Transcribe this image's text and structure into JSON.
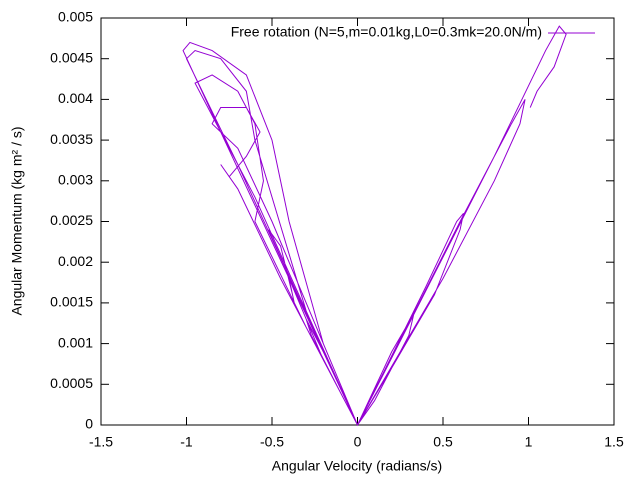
{
  "chart_data": {
    "type": "line",
    "x_label": "Angular Velocity (radians/s)",
    "y_label": "Angular Momentum (kg m² / s)",
    "xlim": [
      -1.5,
      1.5
    ],
    "xticks": [
      -1.5,
      -1,
      -0.5,
      0,
      0.5,
      1,
      1.5
    ],
    "ylim": [
      0,
      0.005
    ],
    "yticks": [
      0,
      0.0005,
      0.001,
      0.0015,
      0.002,
      0.0025,
      0.003,
      0.0035,
      0.004,
      0.0045,
      0.005
    ],
    "legend": "top-right",
    "series": [
      {
        "name": "Free rotation (N=5,m=0.01kg,L0=0.3mk=20.0N/m)",
        "color": "#9400d3",
        "x": [
          0,
          -0.2,
          -0.3,
          -0.27,
          -0.1,
          0,
          0.2,
          0.33,
          0.3,
          0.1,
          0,
          -0.35,
          -0.5,
          -0.52,
          -0.45,
          -0.38,
          -0.37,
          -0.4,
          -0.2,
          0,
          0.4,
          0.58,
          0.62,
          0.6,
          0.45,
          0.2,
          0,
          -0.5,
          -0.7,
          -0.85,
          -0.8,
          -0.65,
          -0.57,
          -0.65,
          -0.75,
          -0.8,
          -0.7,
          -0.45,
          0,
          0.6,
          0.9,
          0.98,
          0.95,
          0.8,
          0.5,
          0,
          -0.6,
          -0.9,
          -0.95,
          -0.85,
          -0.7,
          -0.6,
          -0.55,
          -0.6,
          -0.3,
          0,
          -0.7,
          -1.0,
          -0.95,
          -0.8,
          -0.65,
          -0.6,
          -0.3,
          0,
          -0.8,
          -1.02,
          -0.98,
          -0.85,
          -0.65,
          -0.5,
          -0.4,
          -0.2,
          0,
          0.8,
          1.1,
          1.18,
          1.22,
          1.15,
          1.05,
          1.01
        ],
        "values": [
          0,
          0.0009,
          0.0013,
          0.0011,
          0.0004,
          0,
          0.0009,
          0.00137,
          0.0011,
          0.0003,
          0,
          0.0016,
          0.0023,
          0.0024,
          0.0022,
          0.0016,
          0.0015,
          0.0018,
          0.0008,
          0,
          0.0017,
          0.0025,
          0.0026,
          0.0024,
          0.0016,
          0.0007,
          0,
          0.0025,
          0.0034,
          0.0037,
          0.0039,
          0.0039,
          0.0036,
          0.0033,
          0.00305,
          0.0032,
          0.0029,
          0.0018,
          0,
          0.0025,
          0.0037,
          0.004,
          0.0037,
          0.003,
          0.0018,
          0,
          0.0028,
          0.004,
          0.0042,
          0.0043,
          0.0041,
          0.0037,
          0.003,
          0.0025,
          0.0012,
          0,
          0.0032,
          0.0045,
          0.0046,
          0.0045,
          0.0041,
          0.0035,
          0.0014,
          0,
          0.0036,
          0.0046,
          0.0047,
          0.0046,
          0.0043,
          0.0035,
          0.0025,
          0.001,
          0,
          0.0033,
          0.0046,
          0.0049,
          0.0048,
          0.0044,
          0.0041,
          0.0039
        ]
      }
    ]
  }
}
